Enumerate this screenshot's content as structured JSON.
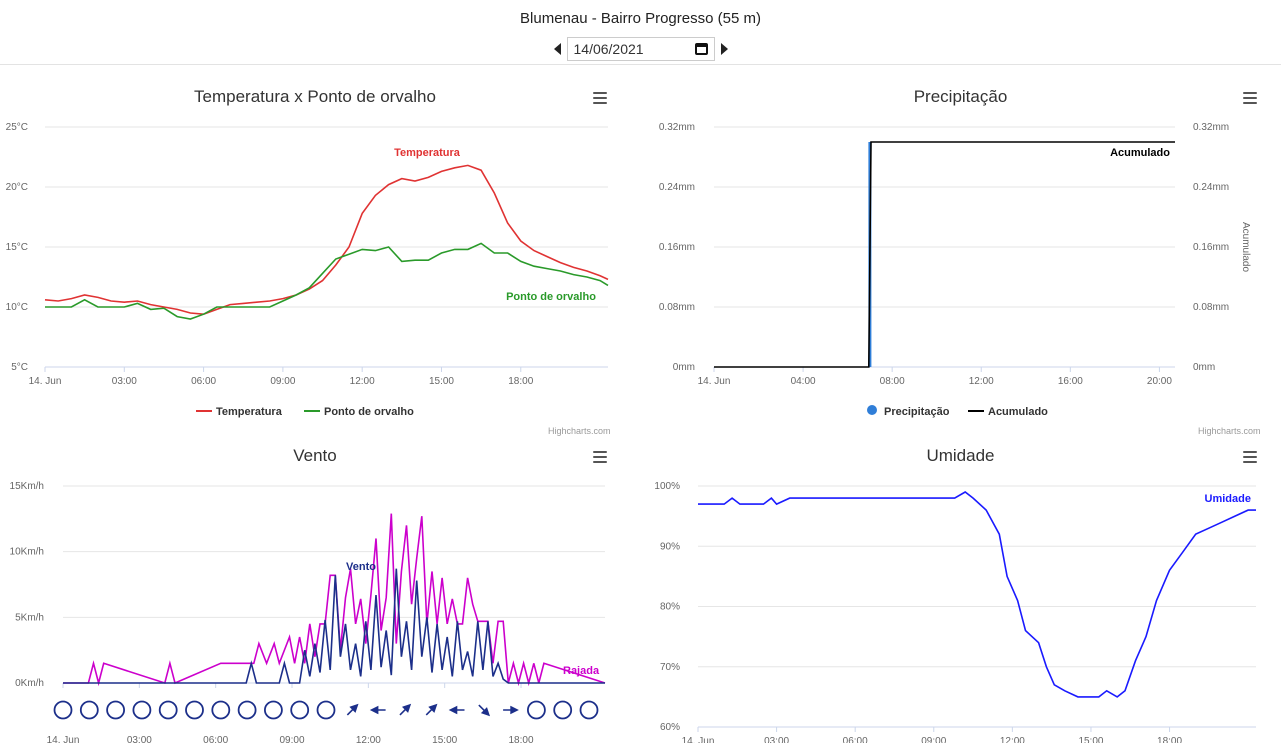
{
  "header": {
    "title": "Blumenau - Bairro Progresso (55 m)",
    "date": "14/06/2021"
  },
  "credits": "Highcharts.com",
  "charts": {
    "temp": {
      "title": "Temperatura x Ponto de orvalho",
      "legend": [
        "Temperatura",
        "Ponto de orvalho"
      ]
    },
    "precip": {
      "title": "Precipitação",
      "legend": [
        "Precipitação",
        "Acumulado"
      ]
    },
    "wind": {
      "title": "Vento"
    },
    "hum": {
      "title": "Umidade"
    }
  },
  "chart_data": [
    {
      "type": "line",
      "title": "Temperatura x Ponto de orvalho",
      "x_unit": "hour of day",
      "x_ticks": [
        "14. Jun",
        "03:00",
        "06:00",
        "09:00",
        "12:00",
        "15:00",
        "18:00"
      ],
      "y_ticks": [
        "5°C",
        "10°C",
        "15°C",
        "20°C",
        "25°C"
      ],
      "ylim": [
        5,
        25
      ],
      "xlim": [
        0,
        21.3
      ],
      "colors": {
        "Temperatura": "#e03333",
        "Ponto de orvalho": "#2a9a2a"
      },
      "series": [
        {
          "name": "Temperatura",
          "x": [
            0,
            0.5,
            1,
            1.5,
            2,
            2.5,
            3,
            3.5,
            4,
            4.5,
            5,
            5.5,
            6,
            6.5,
            7,
            7.5,
            8,
            8.5,
            9,
            9.5,
            10,
            10.5,
            11,
            11.5,
            12,
            12.5,
            13,
            13.5,
            14,
            14.5,
            15,
            15.5,
            16,
            16.5,
            17,
            17.5,
            18,
            18.5,
            19,
            19.5,
            20,
            20.5,
            21,
            21.3
          ],
          "y": [
            10.6,
            10.5,
            10.7,
            11,
            10.8,
            10.5,
            10.4,
            10.5,
            10.2,
            10,
            9.8,
            9.5,
            9.4,
            9.8,
            10.2,
            10.3,
            10.4,
            10.5,
            10.7,
            11,
            11.5,
            12.2,
            13.5,
            15,
            17.8,
            19.3,
            20.2,
            20.7,
            20.5,
            20.8,
            21.3,
            21.6,
            21.8,
            21.4,
            19.5,
            17,
            15.5,
            14.7,
            14.2,
            13.7,
            13.3,
            13,
            12.6,
            12.3
          ]
        },
        {
          "name": "Ponto de orvalho",
          "x": [
            0,
            0.5,
            1,
            1.5,
            2,
            2.5,
            3,
            3.5,
            4,
            4.5,
            5,
            5.5,
            6,
            6.5,
            7,
            7.5,
            8,
            8.5,
            9,
            9.5,
            10,
            10.5,
            11,
            11.5,
            12,
            12.5,
            13,
            13.5,
            14,
            14.5,
            15,
            15.5,
            16,
            16.5,
            17,
            17.5,
            18,
            18.5,
            19,
            19.5,
            20,
            20.5,
            21,
            21.3
          ],
          "y": [
            10,
            10,
            10,
            10.6,
            10,
            10,
            10,
            10.3,
            9.8,
            9.9,
            9.2,
            9,
            9.4,
            10,
            10,
            10,
            10,
            10,
            10.5,
            11,
            11.6,
            12.8,
            14,
            14.4,
            14.8,
            14.7,
            15,
            13.8,
            13.9,
            13.9,
            14.5,
            14.8,
            14.8,
            15.3,
            14.5,
            14.5,
            13.8,
            13.4,
            13.2,
            13,
            12.7,
            12.5,
            12.2,
            11.8
          ]
        }
      ],
      "annotations": [
        "Temperatura",
        "Ponto de orvalho"
      ]
    },
    {
      "type": "line",
      "title": "Precipitação",
      "x_ticks": [
        "14. Jun",
        "04:00",
        "08:00",
        "12:00",
        "16:00",
        "20:00"
      ],
      "y_ticks": [
        "0mm",
        "0.08mm",
        "0.16mm",
        "0.24mm",
        "0.32mm"
      ],
      "y2_ticks": [
        "0mm",
        "0.08mm",
        "0.16mm",
        "0.24mm",
        "0.32mm"
      ],
      "y2_label": "Acumulado",
      "ylim": [
        0,
        0.32
      ],
      "xlim": [
        0,
        20.7
      ],
      "series": [
        {
          "name": "Precipitação",
          "type": "column",
          "color": "#2f7ed8",
          "x": [
            7.0
          ],
          "y": [
            0.3
          ]
        },
        {
          "name": "Acumulado",
          "type": "line",
          "color": "#000000",
          "x": [
            0,
            6.95,
            7.05,
            20.7
          ],
          "y": [
            0,
            0,
            0.3,
            0.3
          ]
        }
      ],
      "annotations": [
        "Acumulado"
      ]
    },
    {
      "type": "line",
      "title": "Vento",
      "x_ticks": [
        "14. Jun",
        "03:00",
        "06:00",
        "09:00",
        "12:00",
        "15:00",
        "18:00"
      ],
      "y_ticks": [
        "0Km/h",
        "5Km/h",
        "10Km/h",
        "15Km/h"
      ],
      "ylim": [
        0,
        15
      ],
      "xlim": [
        0,
        21.3
      ],
      "series": [
        {
          "name": "Vento",
          "color": "#1c2f8a",
          "x": [
            0,
            7.2,
            7.4,
            7.6,
            8.5,
            8.7,
            8.9,
            9.3,
            9.5,
            9.7,
            9.9,
            10.1,
            10.3,
            10.5,
            10.7,
            10.9,
            11.1,
            11.3,
            11.5,
            11.7,
            11.9,
            12.1,
            12.3,
            12.5,
            12.7,
            12.9,
            13.1,
            13.3,
            13.5,
            13.7,
            13.9,
            14.1,
            14.3,
            14.5,
            14.7,
            14.9,
            15.1,
            15.3,
            15.5,
            15.7,
            15.9,
            16.1,
            16.3,
            16.5,
            16.7,
            16.9,
            17.1,
            17.3,
            17.5,
            21.3
          ],
          "y": [
            0,
            0,
            1.5,
            0,
            0,
            1.5,
            0,
            0,
            2.5,
            0.5,
            3,
            0.8,
            4.8,
            1,
            8.2,
            2,
            4.5,
            1,
            3,
            0.5,
            4.7,
            1,
            6.7,
            1.2,
            4,
            0.6,
            8.7,
            2,
            4.7,
            1,
            7.8,
            2,
            5,
            0.8,
            4.5,
            1,
            3.5,
            0.5,
            4.7,
            1,
            2.4,
            0.5,
            4.7,
            1,
            4.7,
            0.5,
            1.5,
            0.3,
            0,
            0
          ]
        },
        {
          "name": "Rajada",
          "color": "#cc00cc",
          "x": [
            0,
            1,
            1.2,
            1.4,
            1.6,
            4,
            4.2,
            4.4,
            6.2,
            6.4,
            7.5,
            7.7,
            8,
            8.3,
            8.5,
            8.9,
            9.1,
            9.3,
            9.5,
            9.7,
            9.9,
            10.1,
            10.3,
            10.5,
            10.7,
            10.9,
            11.1,
            11.3,
            11.5,
            11.7,
            11.9,
            12.1,
            12.3,
            12.5,
            12.7,
            12.9,
            13.1,
            13.3,
            13.5,
            13.7,
            13.9,
            14.1,
            14.3,
            14.5,
            14.7,
            14.9,
            15.1,
            15.3,
            15.5,
            15.7,
            15.9,
            16.1,
            16.3,
            16.5,
            16.7,
            16.9,
            17.1,
            17.3,
            17.5,
            17.7,
            17.9,
            18.1,
            18.3,
            18.5,
            18.7,
            18.9,
            21.3
          ],
          "y": [
            0,
            0,
            1.5,
            0,
            1.5,
            0,
            1.5,
            0,
            1.5,
            1.5,
            1.5,
            3,
            1.5,
            3,
            1.5,
            3.5,
            1.5,
            3.5,
            1.5,
            4.5,
            2,
            4.5,
            4.5,
            8.2,
            8.2,
            2.5,
            6.5,
            8.7,
            4.5,
            6.4,
            3,
            6.7,
            11,
            4,
            6.5,
            12.9,
            3,
            8.5,
            12,
            6,
            9.5,
            12.7,
            4.5,
            8.5,
            4.5,
            8,
            4.5,
            6.4,
            4.5,
            4.5,
            8,
            6,
            4.7,
            4.7,
            4.7,
            1.5,
            4.7,
            4.7,
            0,
            1.5,
            0,
            1.5,
            0,
            1.5,
            0,
            1.5,
            0
          ]
        }
      ],
      "annotations": [
        "Vento",
        "Rajada"
      ],
      "direction_markers": [
        "calm",
        "calm",
        "calm",
        "calm",
        "calm",
        "calm",
        "calm",
        "calm",
        "calm",
        "calm",
        "calm",
        "NE",
        "W",
        "NE",
        "NE",
        "W",
        "SE",
        "E",
        "calm",
        "calm",
        "calm"
      ]
    },
    {
      "type": "line",
      "title": "Umidade",
      "x_ticks": [
        "14. Jun",
        "03:00",
        "06:00",
        "09:00",
        "12:00",
        "15:00",
        "18:00"
      ],
      "y_ticks": [
        "60%",
        "70%",
        "80%",
        "90%",
        "100%"
      ],
      "ylim": [
        60,
        100
      ],
      "xlim": [
        0,
        21.3
      ],
      "series": [
        {
          "name": "Umidade",
          "color": "#1a1aff",
          "x": [
            0,
            1,
            1.3,
            1.6,
            2.5,
            2.8,
            3,
            3.5,
            6,
            9,
            9.8,
            10.2,
            10.5,
            11,
            11.5,
            11.8,
            12.2,
            12.5,
            13,
            13.3,
            13.6,
            14,
            14.5,
            15,
            15.3,
            15.6,
            16,
            16.3,
            16.7,
            17.1,
            17.5,
            18,
            18.5,
            19,
            19.5,
            20,
            20.5,
            21,
            21.3
          ],
          "y": [
            97,
            97,
            98,
            97,
            97,
            98,
            97,
            98,
            98,
            98,
            98,
            99,
            98,
            96,
            92,
            85,
            81,
            76,
            74,
            70,
            67,
            66,
            65,
            65,
            65,
            66,
            65,
            66,
            71,
            75,
            81,
            86,
            89,
            92,
            93,
            94,
            95,
            96,
            96
          ]
        }
      ],
      "annotations": [
        "Umidade"
      ]
    }
  ]
}
